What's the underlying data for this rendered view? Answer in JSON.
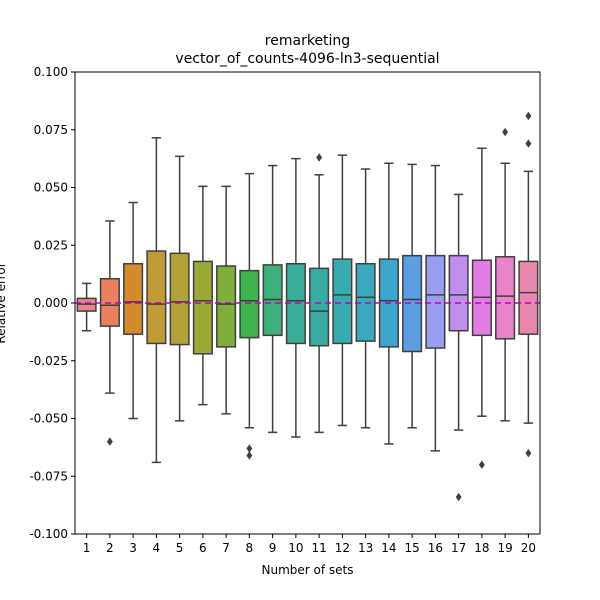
{
  "chart_data": {
    "type": "box",
    "title_lines": [
      "remarketing",
      "vector_of_counts-4096-ln3-sequential"
    ],
    "xlabel": "Number of sets",
    "ylabel": "Relative error",
    "ylim": [
      -0.1,
      0.1
    ],
    "yticks": [
      "-0.100",
      "-0.075",
      "-0.050",
      "-0.025",
      "0.000",
      "0.025",
      "0.050",
      "0.075",
      "0.100"
    ],
    "ytick_values": [
      -0.1,
      -0.075,
      -0.05,
      -0.025,
      0.0,
      0.025,
      0.05,
      0.075,
      0.1
    ],
    "reference_line": {
      "y": 0.0,
      "color": "#bf00bf",
      "style": "dashed"
    },
    "categories": [
      "1",
      "2",
      "3",
      "4",
      "5",
      "6",
      "7",
      "8",
      "9",
      "10",
      "11",
      "12",
      "13",
      "14",
      "15",
      "16",
      "17",
      "18",
      "19",
      "20"
    ],
    "boxes": [
      {
        "color": "#e8878b",
        "whisker_low": -0.012,
        "q1": -0.0035,
        "median": -0.0005,
        "q3": 0.002,
        "whisker_high": 0.0085,
        "outliers": []
      },
      {
        "color": "#e8825e",
        "whisker_low": -0.039,
        "q1": -0.01,
        "median": -0.001,
        "q3": 0.0105,
        "whisker_high": 0.0355,
        "outliers": [
          -0.06
        ]
      },
      {
        "color": "#d58a2e",
        "whisker_low": -0.05,
        "q1": -0.0135,
        "median": 0.0005,
        "q3": 0.017,
        "whisker_high": 0.0435,
        "outliers": []
      },
      {
        "color": "#c09a37",
        "whisker_low": -0.069,
        "q1": -0.0175,
        "median": -0.0005,
        "q3": 0.0225,
        "whisker_high": 0.0715,
        "outliers": []
      },
      {
        "color": "#b3a23a",
        "whisker_low": -0.051,
        "q1": -0.018,
        "median": 0.0005,
        "q3": 0.0215,
        "whisker_high": 0.0635,
        "outliers": []
      },
      {
        "color": "#9aa837",
        "whisker_low": -0.044,
        "q1": -0.022,
        "median": 0.001,
        "q3": 0.018,
        "whisker_high": 0.0505,
        "outliers": []
      },
      {
        "color": "#7fae3a",
        "whisker_low": -0.048,
        "q1": -0.019,
        "median": -0.0005,
        "q3": 0.016,
        "whisker_high": 0.0505,
        "outliers": []
      },
      {
        "color": "#3fb34d",
        "whisker_low": -0.054,
        "q1": -0.015,
        "median": 0.001,
        "q3": 0.014,
        "whisker_high": 0.056,
        "outliers": [
          -0.063,
          -0.066
        ]
      },
      {
        "color": "#3db07e",
        "whisker_low": -0.056,
        "q1": -0.014,
        "median": 0.0015,
        "q3": 0.0165,
        "whisker_high": 0.0595,
        "outliers": []
      },
      {
        "color": "#3aae96",
        "whisker_low": -0.058,
        "q1": -0.0175,
        "median": 0.001,
        "q3": 0.017,
        "whisker_high": 0.0625,
        "outliers": []
      },
      {
        "color": "#38aca3",
        "whisker_low": -0.056,
        "q1": -0.0185,
        "median": -0.0035,
        "q3": 0.015,
        "whisker_high": 0.0555,
        "outliers": [
          0.063
        ]
      },
      {
        "color": "#39abb0",
        "whisker_low": -0.053,
        "q1": -0.0175,
        "median": 0.0035,
        "q3": 0.019,
        "whisker_high": 0.064,
        "outliers": []
      },
      {
        "color": "#3ba9bd",
        "whisker_low": -0.054,
        "q1": -0.0165,
        "median": 0.0025,
        "q3": 0.017,
        "whisker_high": 0.058,
        "outliers": []
      },
      {
        "color": "#3ea6cd",
        "whisker_low": -0.061,
        "q1": -0.019,
        "median": 0.001,
        "q3": 0.019,
        "whisker_high": 0.0605,
        "outliers": []
      },
      {
        "color": "#5b9fe2",
        "whisker_low": -0.054,
        "q1": -0.021,
        "median": 0.0015,
        "q3": 0.0205,
        "whisker_high": 0.06,
        "outliers": []
      },
      {
        "color": "#9b9ef0",
        "whisker_low": -0.064,
        "q1": -0.0195,
        "median": 0.0035,
        "q3": 0.0205,
        "whisker_high": 0.0595,
        "outliers": []
      },
      {
        "color": "#bf8fee",
        "whisker_low": -0.055,
        "q1": -0.012,
        "median": 0.0035,
        "q3": 0.0205,
        "whisker_high": 0.047,
        "outliers": [
          -0.084
        ]
      },
      {
        "color": "#e07ee6",
        "whisker_low": -0.049,
        "q1": -0.014,
        "median": 0.0025,
        "q3": 0.0185,
        "whisker_high": 0.067,
        "outliers": [
          -0.07
        ]
      },
      {
        "color": "#e883cc",
        "whisker_low": -0.051,
        "q1": -0.0155,
        "median": 0.003,
        "q3": 0.02,
        "whisker_high": 0.0605,
        "outliers": [
          0.074
        ]
      },
      {
        "color": "#e886ad",
        "whisker_low": -0.052,
        "q1": -0.0135,
        "median": 0.0045,
        "q3": 0.018,
        "whisker_high": 0.057,
        "outliers": [
          0.081,
          0.069,
          -0.065
        ]
      }
    ]
  }
}
